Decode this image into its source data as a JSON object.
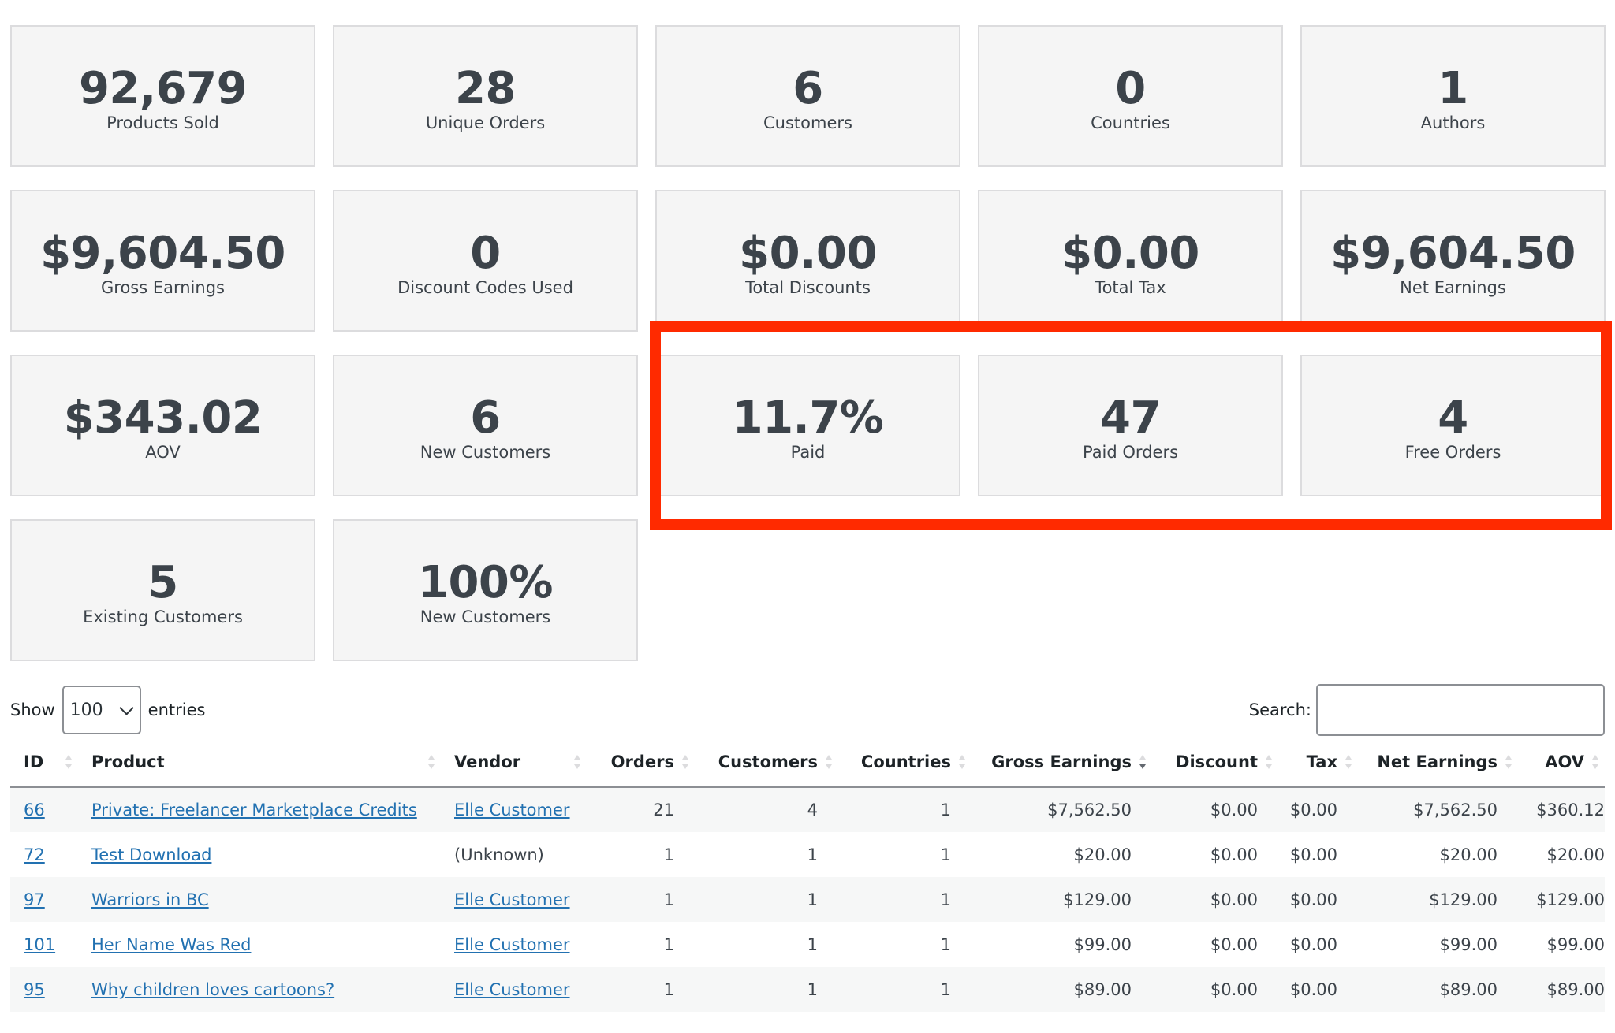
{
  "stats": [
    {
      "value": "92,679",
      "label": "Products Sold"
    },
    {
      "value": "28",
      "label": "Unique Orders"
    },
    {
      "value": "6",
      "label": "Customers"
    },
    {
      "value": "0",
      "label": "Countries"
    },
    {
      "value": "1",
      "label": "Authors"
    },
    {
      "value": "$9,604.50",
      "label": "Gross Earnings"
    },
    {
      "value": "0",
      "label": "Discount Codes Used"
    },
    {
      "value": "$0.00",
      "label": "Total Discounts"
    },
    {
      "value": "$0.00",
      "label": "Total Tax"
    },
    {
      "value": "$9,604.50",
      "label": "Net Earnings"
    },
    {
      "value": "$343.02",
      "label": "AOV"
    },
    {
      "value": "6",
      "label": "New Customers"
    },
    {
      "value": "11.7%",
      "label": "Paid"
    },
    {
      "value": "47",
      "label": "Paid Orders"
    },
    {
      "value": "4",
      "label": "Free Orders"
    },
    {
      "value": "5",
      "label": "Existing Customers"
    },
    {
      "value": "100%",
      "label": "New Customers"
    }
  ],
  "highlight_color": "#ff2a00",
  "table_controls": {
    "show_label": "Show",
    "page_length": "100",
    "entries_label": "entries",
    "search_label": "Search:",
    "search_value": ""
  },
  "table": {
    "columns": [
      "ID",
      "Product",
      "Vendor",
      "Orders",
      "Customers",
      "Countries",
      "Gross Earnings",
      "Discount",
      "Tax",
      "Net Earnings",
      "AOV"
    ],
    "sorted_column": "Gross Earnings",
    "rows": [
      {
        "id": "66",
        "product": "Private: Freelancer Marketplace Credits",
        "vendor": "Elle Customer",
        "orders": "21",
        "customers": "4",
        "countries": "1",
        "gross": "$7,562.50",
        "discount": "$0.00",
        "tax": "$0.00",
        "net": "$7,562.50",
        "aov": "$360.12"
      },
      {
        "id": "72",
        "product": "Test Download",
        "vendor": "(Unknown)",
        "orders": "1",
        "customers": "1",
        "countries": "1",
        "gross": "$20.00",
        "discount": "$0.00",
        "tax": "$0.00",
        "net": "$20.00",
        "aov": "$20.00"
      },
      {
        "id": "97",
        "product": "Warriors in BC",
        "vendor": "Elle Customer",
        "orders": "1",
        "customers": "1",
        "countries": "1",
        "gross": "$129.00",
        "discount": "$0.00",
        "tax": "$0.00",
        "net": "$129.00",
        "aov": "$129.00"
      },
      {
        "id": "101",
        "product": "Her Name Was Red",
        "vendor": "Elle Customer",
        "orders": "1",
        "customers": "1",
        "countries": "1",
        "gross": "$99.00",
        "discount": "$0.00",
        "tax": "$0.00",
        "net": "$99.00",
        "aov": "$99.00"
      },
      {
        "id": "95",
        "product": "Why children loves cartoons?",
        "vendor": "Elle Customer",
        "orders": "1",
        "customers": "1",
        "countries": "1",
        "gross": "$89.00",
        "discount": "$0.00",
        "tax": "$0.00",
        "net": "$89.00",
        "aov": "$89.00"
      }
    ]
  }
}
